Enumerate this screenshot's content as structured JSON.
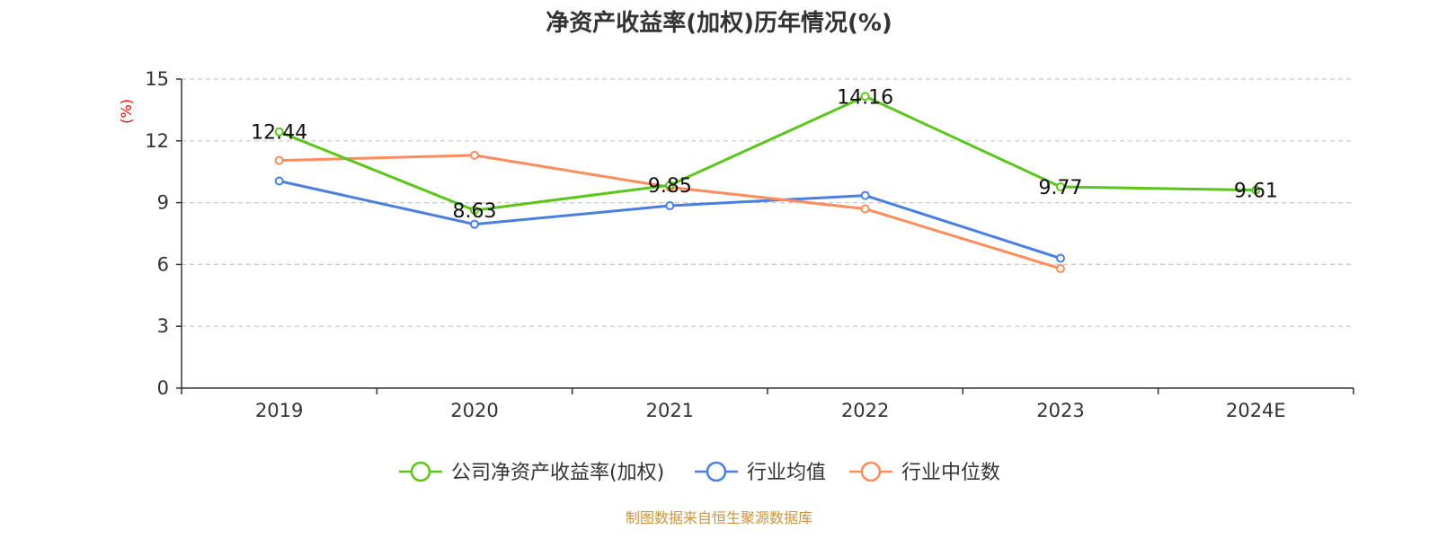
{
  "chart_data": {
    "type": "line",
    "title": "净资产收益率(加权)历年情况(%)",
    "ylabel": "(%)",
    "xlabel": "",
    "ylim": [
      0,
      15
    ],
    "yticks": [
      0,
      3,
      6,
      9,
      12,
      15
    ],
    "grid": true,
    "legend_position": "bottom",
    "categories": [
      "2019",
      "2020",
      "2021",
      "2022",
      "2023",
      "2024E"
    ],
    "series": [
      {
        "name": "公司净资产收益率(加权)",
        "color": "#5cc51c",
        "values": [
          12.44,
          8.63,
          9.85,
          14.16,
          9.77,
          9.61
        ],
        "labels": [
          "12.44",
          "8.63",
          "9.85",
          "14.16",
          "9.77",
          "9.61"
        ]
      },
      {
        "name": "行业均值",
        "color": "#4a7fe0",
        "values": [
          10.05,
          7.95,
          8.85,
          9.35,
          6.3,
          null
        ]
      },
      {
        "name": "行业中位数",
        "color": "#ff8c5a",
        "values": [
          11.05,
          11.3,
          9.75,
          8.7,
          5.8,
          null
        ]
      }
    ]
  },
  "source": "制图数据来自恒生聚源数据库"
}
